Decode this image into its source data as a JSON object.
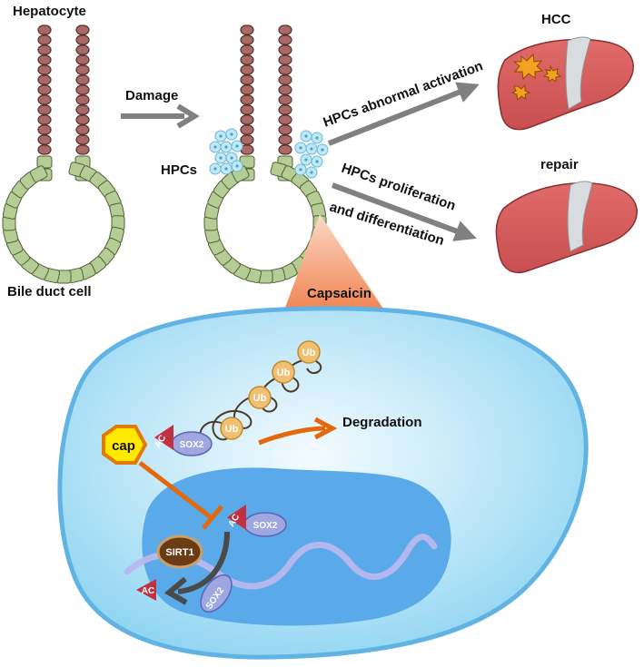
{
  "labels": {
    "hepatocyte": "Hepatocyte",
    "bile_duct_cell": "Bile duct cell",
    "damage": "Damage",
    "hpcs": "HPCs",
    "hcc": "HCC",
    "repair": "repair",
    "abnormal_activation": "HPCs abnormal activation",
    "proliferation_line1": "HPCs proliferation",
    "proliferation_line2": "and differentiation",
    "capsaicin": "Capsaicin",
    "degradation": "Degradation"
  },
  "molecules": {
    "ub": "Ub",
    "sox2": "SOX2",
    "ac": "AC",
    "cap": "cap",
    "sirt1": "SIRT1"
  },
  "colors": {
    "hepatocyte_fill": "#a86a66",
    "hepatocyte_stroke": "#5b2f2c",
    "bile_cell_fill": "#b5cc94",
    "bile_cell_stroke": "#4d6339",
    "hpc_fill": "#bfe8f5",
    "liver_fill": "#d9605f",
    "liver_stroke": "#8a2f2f",
    "tumor_fill": "#f2a21f",
    "arrow_gray": "#808080",
    "capsaicin_orange": "#ef7a45",
    "cell_fill": "#8fd5f2",
    "cell_stroke": "#61b3e3",
    "nucleus_fill": "#5aa9e8",
    "ub_fill": "#f0c073",
    "sox2_fill": "#9ea7e0",
    "ac_fill": "#c0323f",
    "cap_fill": "#ffe900",
    "sirt1_fill": "#6a3c16",
    "inhibit_orange": "#e3690c"
  }
}
